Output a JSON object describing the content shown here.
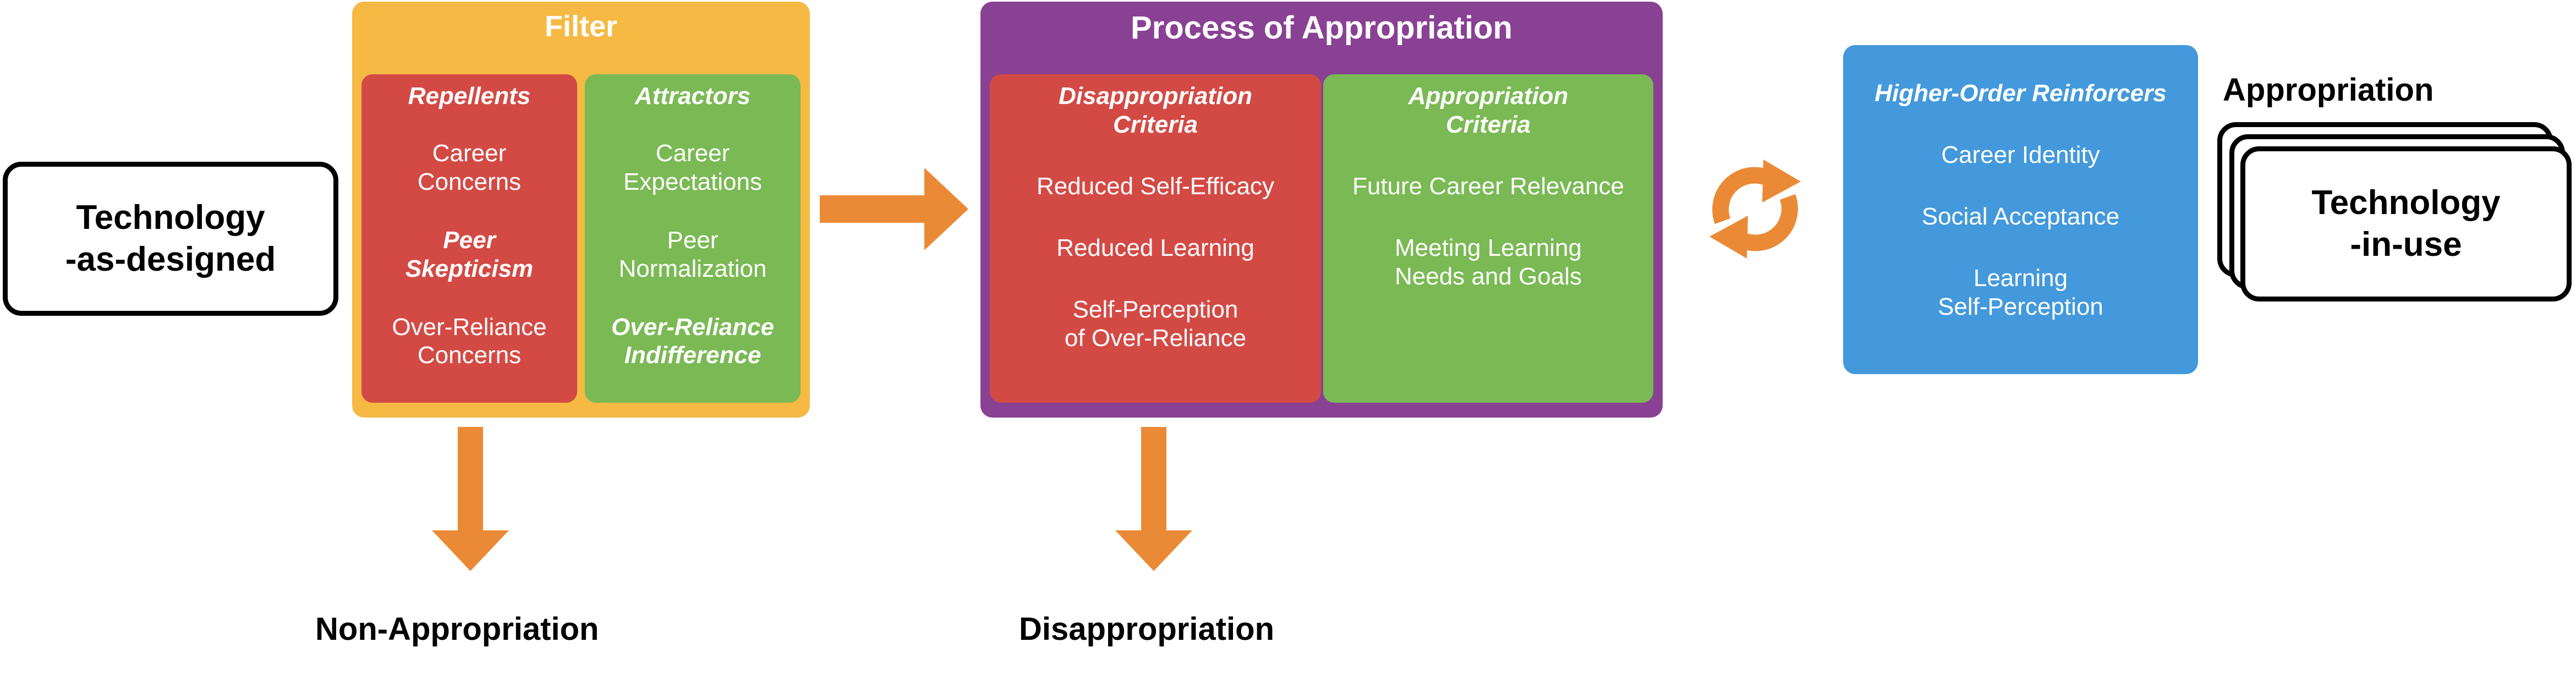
{
  "colors": {
    "filter_bg": "#F5B944",
    "repellents_bg": "#D34A45",
    "attractors_bg": "#7AB954",
    "process_bg": "#894193",
    "disapp_bg": "#D34A45",
    "app_bg": "#7AB954",
    "reinforcers_bg": "#4399DB",
    "arrow": "#EB8A36"
  },
  "technology_as_designed": "Technology\n-as-designed",
  "filter": {
    "title": "Filter",
    "repellents": {
      "heading": "Repellents",
      "items": [
        {
          "text": "Career\nConcerns",
          "italic": false
        },
        {
          "text": "Peer\nSkepticism",
          "italic": true
        },
        {
          "text": "Over-Reliance\nConcerns",
          "italic": false
        }
      ]
    },
    "attractors": {
      "heading": "Attractors",
      "items": [
        {
          "text": "Career\nExpectations",
          "italic": false
        },
        {
          "text": "Peer\nNormalization",
          "italic": false
        },
        {
          "text": "Over-Reliance\nIndifference",
          "italic": true
        }
      ]
    }
  },
  "process": {
    "title": "Process of Appropriation",
    "disappropriation_criteria": {
      "heading": "Disappropriation\nCriteria",
      "items": [
        "Reduced Self-Efficacy",
        "Reduced Learning",
        "Self-Perception\nof Over-Reliance"
      ]
    },
    "appropriation_criteria": {
      "heading": "Appropriation\nCriteria",
      "items": [
        "Future Career Relevance",
        "Meeting Learning\nNeeds and Goals"
      ]
    }
  },
  "reinforcers": {
    "heading": "Higher-Order Reinforcers",
    "items": [
      "Career Identity",
      "Social Acceptance",
      "Learning\nSelf-Perception"
    ]
  },
  "appropriation_label": "Appropriation",
  "technology_in_use": "Technology\n-in-use",
  "non_appropriation": "Non-Appropriation",
  "disappropriation": "Disappropriation"
}
